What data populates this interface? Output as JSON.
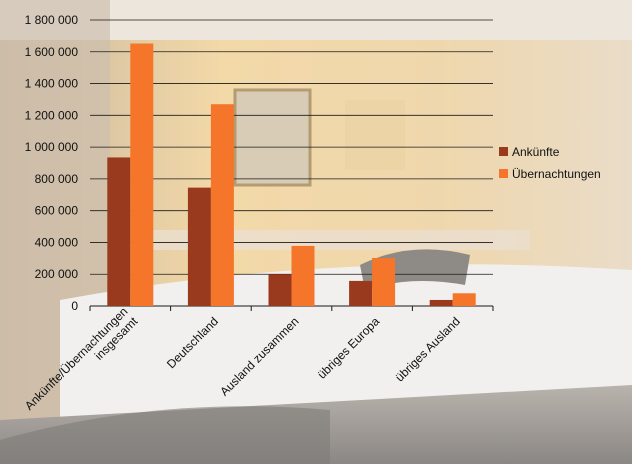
{
  "chart_data": {
    "type": "bar",
    "categories": [
      [
        "Ankünfte/Übernachtungen",
        "insgesamt"
      ],
      [
        "Deutschland"
      ],
      [
        "Ausland zusammen"
      ],
      [
        "übriges Europa"
      ],
      [
        "übriges Ausland"
      ]
    ],
    "series": [
      {
        "name": "Ankünfte",
        "color": "#993A1E",
        "values": [
          935000,
          745000,
          200000,
          158000,
          38000
        ]
      },
      {
        "name": "Übernachtungen",
        "color": "#F5752A",
        "values": [
          1652000,
          1270000,
          378000,
          302000,
          80000
        ]
      }
    ],
    "ylim": [
      0,
      1800000
    ],
    "yticks": [
      0,
      200000,
      400000,
      600000,
      800000,
      1000000,
      1200000,
      1400000,
      1600000,
      1800000
    ],
    "ytick_labels": [
      "0",
      "200 000",
      "400 000",
      "600 000",
      "800 000",
      "1 000 000",
      "1 200 000",
      "1 400 000",
      "1 600 000",
      "1 800 000"
    ],
    "grid": true,
    "legend_position": "right",
    "background": "hotel-room-photo"
  }
}
